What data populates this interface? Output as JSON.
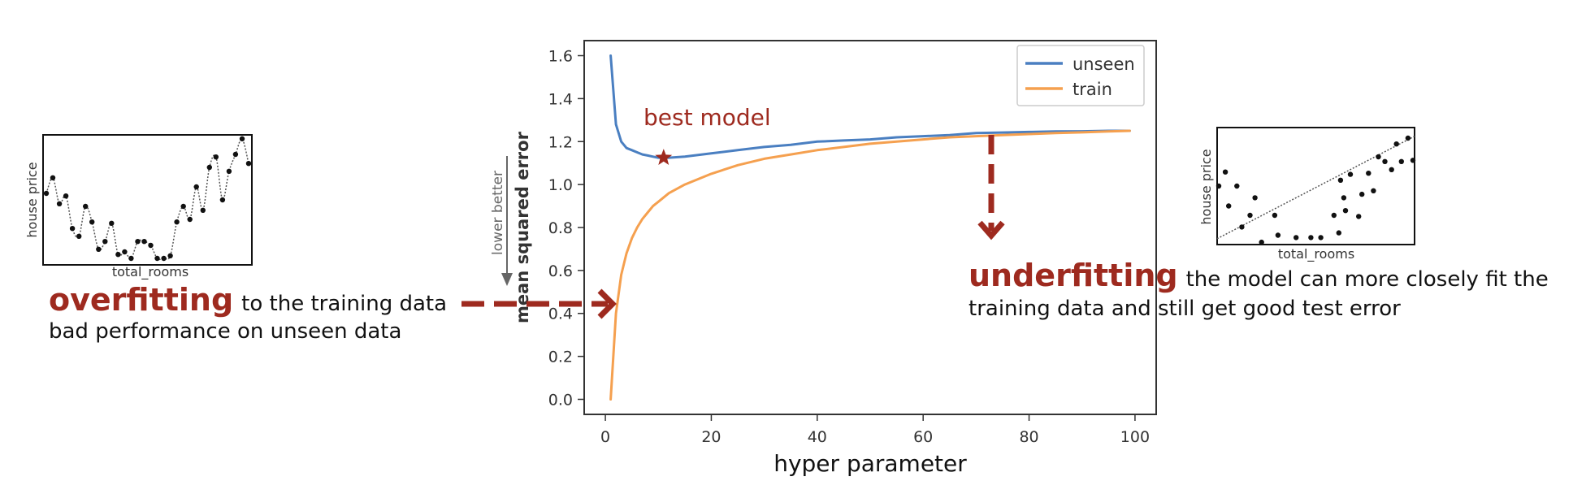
{
  "chart_data": [
    {
      "type": "line",
      "x": [
        1,
        2,
        3,
        4,
        5,
        6,
        7,
        8,
        9,
        10,
        12,
        15,
        20,
        25,
        30,
        35,
        40,
        45,
        50,
        55,
        60,
        65,
        70,
        75,
        80,
        85,
        90,
        95,
        99
      ],
      "series": [
        {
          "name": "unseen",
          "color": "#4a7fc1",
          "values": [
            1.6,
            1.28,
            1.2,
            1.17,
            1.16,
            1.15,
            1.14,
            1.135,
            1.13,
            1.125,
            1.125,
            1.13,
            1.145,
            1.16,
            1.175,
            1.185,
            1.2,
            1.205,
            1.21,
            1.22,
            1.225,
            1.23,
            1.24,
            1.242,
            1.245,
            1.247,
            1.248,
            1.25,
            1.25
          ]
        },
        {
          "name": "train",
          "color": "#f5a04f",
          "values": [
            0.0,
            0.4,
            0.58,
            0.68,
            0.75,
            0.8,
            0.84,
            0.87,
            0.9,
            0.92,
            0.96,
            1.0,
            1.05,
            1.09,
            1.12,
            1.14,
            1.16,
            1.175,
            1.19,
            1.2,
            1.21,
            1.22,
            1.225,
            1.23,
            1.235,
            1.24,
            1.243,
            1.247,
            1.25
          ]
        }
      ],
      "xlabel": "hyper parameter",
      "ylabel": "mean squared error",
      "xlim": [
        -4,
        104
      ],
      "ylim": [
        -0.07,
        1.67
      ],
      "xticks": [
        0,
        20,
        40,
        60,
        80,
        100
      ],
      "yticks": [
        0.0,
        0.2,
        0.4,
        0.6,
        0.8,
        1.0,
        1.2,
        1.4,
        1.6
      ],
      "xtick_labels": [
        "0",
        "20",
        "40",
        "60",
        "80",
        "100"
      ],
      "ytick_labels": [
        "0.0",
        "0.2",
        "0.4",
        "0.6",
        "0.8",
        "1.0",
        "1.2",
        "1.4",
        "1.6"
      ],
      "grid": false,
      "legend": "top-right",
      "best_model": {
        "x": 11,
        "y": 1.125,
        "label": "best model"
      },
      "lower_better_label": "lower better"
    },
    {
      "type": "scatter",
      "xlabel": "total_rooms",
      "ylabel": "house price",
      "points": [
        [
          1,
          0.55
        ],
        [
          3,
          0.67
        ],
        [
          5,
          0.47
        ],
        [
          7,
          0.53
        ],
        [
          9,
          0.28
        ],
        [
          11,
          0.22
        ],
        [
          13,
          0.45
        ],
        [
          15,
          0.33
        ],
        [
          17,
          0.12
        ],
        [
          19,
          0.18
        ],
        [
          21,
          0.32
        ],
        [
          23,
          0.08
        ],
        [
          25,
          0.1
        ],
        [
          27,
          0.05
        ],
        [
          29,
          0.18
        ],
        [
          31,
          0.18
        ],
        [
          33,
          0.15
        ],
        [
          35,
          0.05
        ],
        [
          37,
          0.05
        ],
        [
          39,
          0.07
        ],
        [
          41,
          0.33
        ],
        [
          43,
          0.45
        ],
        [
          45,
          0.35
        ],
        [
          47,
          0.6
        ],
        [
          49,
          0.42
        ],
        [
          51,
          0.75
        ],
        [
          53,
          0.83
        ],
        [
          55,
          0.5
        ],
        [
          57,
          0.72
        ],
        [
          59,
          0.85
        ],
        [
          61,
          0.97
        ],
        [
          63,
          0.78
        ]
      ]
    },
    {
      "type": "scatter",
      "xlabel": "total_rooms",
      "ylabel": "house price",
      "trend": [
        [
          0,
          0.05
        ],
        [
          10,
          0.78
        ]
      ],
      "points": [
        [
          0.1,
          0.5
        ],
        [
          0.5,
          0.62
        ],
        [
          0.7,
          0.33
        ],
        [
          1.2,
          0.5
        ],
        [
          1.5,
          0.15
        ],
        [
          2,
          0.25
        ],
        [
          2.3,
          0.4
        ],
        [
          2.7,
          0.02
        ],
        [
          3.5,
          0.25
        ],
        [
          3.7,
          0.08
        ],
        [
          4.8,
          0.06
        ],
        [
          5.7,
          0.06
        ],
        [
          6.3,
          0.06
        ],
        [
          7.1,
          0.25
        ],
        [
          7.4,
          0.1
        ],
        [
          7.5,
          0.55
        ],
        [
          7.7,
          0.4
        ],
        [
          7.8,
          0.29
        ],
        [
          8.1,
          0.6
        ],
        [
          8.6,
          0.24
        ],
        [
          8.8,
          0.43
        ],
        [
          9.2,
          0.61
        ],
        [
          9.5,
          0.46
        ],
        [
          9.8,
          0.75
        ],
        [
          10.2,
          0.71
        ],
        [
          10.6,
          0.64
        ],
        [
          10.9,
          0.86
        ],
        [
          11.2,
          0.71
        ],
        [
          11.6,
          0.91
        ],
        [
          11.9,
          0.72
        ]
      ]
    }
  ],
  "annotations": {
    "overfit": {
      "title": "overfitting",
      "line1": "to the training data",
      "line2": "bad performance on unseen data"
    },
    "underfit": {
      "title": "underfitting",
      "line1": "the model can more closely fit the",
      "line2": "training data and still get good test error"
    }
  },
  "colors": {
    "accent": "#9e2a1f",
    "axis": "#333333",
    "lower_better": "#666666"
  }
}
